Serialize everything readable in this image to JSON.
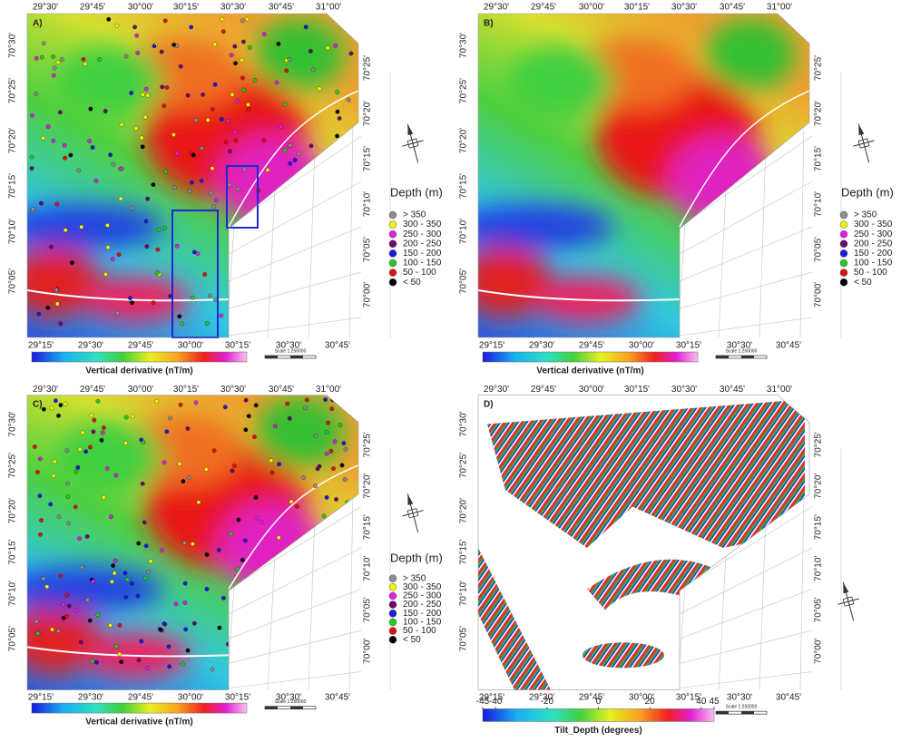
{
  "panels": [
    {
      "label": "A)",
      "top_lon": [
        "29°30'",
        "29°45'",
        "30°00'",
        "30°15'",
        "30°30'",
        "30°45'",
        "31°00'"
      ],
      "bottom_lon": [
        "29°15'",
        "29°30'",
        "29°45'",
        "30°00'",
        "30°15'",
        "30°30'",
        "30°45'"
      ],
      "left_lat": [
        "70°30'",
        "70°25'",
        "70°20'",
        "70°15'",
        "70°10'",
        "70°05'"
      ],
      "right_lat": [
        "70°25'",
        "70°20'",
        "70°15'",
        "70°10'",
        "70°05'",
        "70°00'"
      ],
      "colorbar_title": "Vertical derivative (nT/m)",
      "scale": "Scale 1:250000"
    },
    {
      "label": "B)",
      "top_lon": [
        "29°30'",
        "29°45'",
        "30°00'",
        "30°15'",
        "30°30'",
        "30°45'",
        "31°00'"
      ],
      "bottom_lon": [
        "29°15'",
        "29°30'",
        "29°45'",
        "30°00'",
        "30°15'",
        "30°30'",
        "30°45'"
      ],
      "left_lat": [
        "70°30'",
        "70°25'",
        "70°20'",
        "70°15'",
        "70°10'",
        "70°05'"
      ],
      "right_lat": [
        "70°25'",
        "70°20'",
        "70°15'",
        "70°10'",
        "70°05'",
        "70°00'"
      ],
      "colorbar_title": "Vertical derivative (nT/m)",
      "scale": "Scale 1:250000"
    },
    {
      "label": "C)",
      "top_lon": [
        "29°30'",
        "29°45'",
        "30°00'",
        "30°15'",
        "30°30'",
        "30°45'",
        "31°00'"
      ],
      "bottom_lon": [
        "29°15'",
        "29°30'",
        "29°45'",
        "30°00'",
        "30°15'",
        "30°30'",
        "30°45'"
      ],
      "left_lat": [
        "70°30'",
        "70°25'",
        "70°20'",
        "70°15'",
        "70°10'",
        "70°05'"
      ],
      "right_lat": [
        "70°25'",
        "70°20'",
        "70°15'",
        "70°10'",
        "70°05'",
        "70°00'"
      ],
      "colorbar_title": "Vertical derivative (nT/m)",
      "scale": "Scale 1:250000"
    },
    {
      "label": "D)",
      "top_lon": [
        "29°30'",
        "29°45'",
        "30°00'",
        "30°15'",
        "30°30'",
        "30°45'",
        "31°00'"
      ],
      "bottom_lon": [
        "29°15'",
        "29°30'",
        "29°45'",
        "30°00'",
        "30°15'",
        "30°30'",
        "30°45'"
      ],
      "left_lat": [
        "70°30'",
        "70°25'",
        "70°20'",
        "70°15'",
        "70°10'",
        "70°05'"
      ],
      "right_lat": [
        "70°25'",
        "70°20'",
        "70°15'",
        "70°10'",
        "70°05'",
        "70°00'"
      ],
      "colorbar_title": "Tilt_Depth (degrees)",
      "colorbar_ticks": [
        -45,
        -40,
        -20,
        0,
        20,
        40,
        45
      ],
      "scale": "Scale 1:250000"
    }
  ],
  "legend": {
    "title": "Depth (m)",
    "entries": [
      {
        "label": "> 350",
        "color": "#8c8c8c"
      },
      {
        "label": "300 - 350",
        "color": "#f2f20a"
      },
      {
        "label": "250 - 300",
        "color": "#e020e0"
      },
      {
        "label": "200 - 250",
        "color": "#6a0a6a"
      },
      {
        "label": "150 - 200",
        "color": "#1a1adc"
      },
      {
        "label": "100 - 150",
        "color": "#22cc22"
      },
      {
        "label": "50 - 100",
        "color": "#dd1111"
      },
      {
        "label": "< 50",
        "color": "#000000"
      }
    ]
  }
}
